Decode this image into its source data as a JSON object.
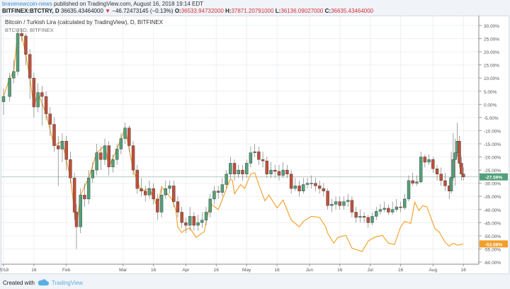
{
  "header": {
    "author": "bravenewcoin-news",
    "published": "published on TradingView.com, August 16, 2018 19:14 EDT",
    "symbol": "BITFINEX:BTCTRY, D",
    "last": "36635.43464000",
    "change": "−46.72473145 (−0.13%)",
    "open_label": "O:",
    "open": "36533.94732000",
    "high_label": "H:",
    "high": "37871.20791000",
    "low_label": "L:",
    "low": "36136.09027000",
    "close_label": "C:",
    "close": "36635.43464000",
    "down_color": "#d0323b"
  },
  "legend": {
    "main": "Bitcoin / Turkish Lira (calculated by TradingView), D, BITFINEX",
    "compare": "BTCUSD, BITFINEX"
  },
  "footer": {
    "created_with": "Created with",
    "brand": "TradingView",
    "icon": "tradingview-cloud-icon"
  },
  "chart_data": {
    "type": "candlestick",
    "year": 2018,
    "ylim": [
      -60,
      30
    ],
    "yticks": [
      "30.00%",
      "25.00%",
      "20.00%",
      "15.00%",
      "10.00%",
      "5.00%",
      "0.00%",
      "-5.00%",
      "-10.00%",
      "-15.00%",
      "-20.00%",
      "-25.00%",
      "-30.00%",
      "-35.00%",
      "-40.00%",
      "-45.00%",
      "-50.00%",
      "-55.00%",
      "-60.00%"
    ],
    "xticks": [
      [
        "01-01",
        "2018"
      ],
      [
        "01-16",
        "16"
      ],
      [
        "02-01",
        "Feb"
      ],
      [
        "03-01",
        "Mar"
      ],
      [
        "03-16",
        "16"
      ],
      [
        "04-01",
        "Apr"
      ],
      [
        "04-16",
        "16"
      ],
      [
        "05-01",
        "May"
      ],
      [
        "05-16",
        "16"
      ],
      [
        "06-01",
        "Jun"
      ],
      [
        "06-16",
        "16"
      ],
      [
        "07-01",
        "Jul"
      ],
      [
        "07-16",
        "16"
      ],
      [
        "08-01",
        "Aug"
      ],
      [
        "08-16",
        "16"
      ]
    ],
    "grid": true,
    "colors": {
      "up": "#53a07a",
      "down": "#c0503a",
      "compare": "#f2a531",
      "last_tag": "#53a07a",
      "compare_tag": "#f2a02a"
    },
    "last_value_label": "-27.59%",
    "last_value": -27.59,
    "compare_last_label": "-53.08%",
    "compare_last": -53.08,
    "series_main": {
      "name": "BTCTRY",
      "ohlc": [
        [
          "01-01",
          1,
          6,
          -4,
          3
        ],
        [
          "01-04",
          3,
          12,
          1,
          10
        ],
        [
          "01-06",
          10,
          17,
          8,
          12.5
        ],
        [
          "01-08",
          12.5,
          29,
          11,
          27
        ],
        [
          "01-10",
          27,
          29,
          24,
          26
        ],
        [
          "01-12",
          26,
          27,
          15,
          19
        ],
        [
          "01-14",
          19,
          21,
          2,
          10
        ],
        [
          "01-16",
          10,
          12,
          -5,
          -1
        ],
        [
          "01-18",
          -1,
          8,
          -3,
          4.5
        ],
        [
          "01-20",
          4.5,
          7,
          -8,
          3
        ],
        [
          "01-22",
          3,
          5,
          -6,
          -3.6
        ],
        [
          "01-24",
          -3.6,
          -1,
          -12,
          -7.6
        ],
        [
          "01-26",
          -7.6,
          -5,
          -18,
          -15.7
        ],
        [
          "01-28",
          -15.7,
          -12,
          -31,
          -17
        ],
        [
          "01-30",
          -17,
          -11,
          -22,
          -14
        ],
        [
          "02-01",
          -14,
          -12,
          -25,
          -21
        ],
        [
          "02-03",
          -21,
          -18,
          -30,
          -28
        ],
        [
          "02-05",
          -28,
          -26,
          -44,
          -41
        ],
        [
          "02-06",
          -41,
          -38,
          -55,
          -46.6
        ],
        [
          "02-08",
          -46.6,
          -32,
          -49,
          -34.5
        ],
        [
          "02-10",
          -34.5,
          -30,
          -39,
          -36
        ],
        [
          "02-12",
          -36,
          -25,
          -38,
          -28
        ],
        [
          "02-14",
          -28,
          -22,
          -30,
          -25
        ],
        [
          "02-16",
          -25,
          -15,
          -27,
          -18.4
        ],
        [
          "02-18",
          -18.4,
          -16,
          -25,
          -21
        ],
        [
          "02-20",
          -21,
          -13,
          -23,
          -15.7
        ],
        [
          "02-22",
          -15.7,
          -14,
          -27,
          -23.8
        ],
        [
          "02-24",
          -23.8,
          -19,
          -26,
          -21
        ],
        [
          "02-26",
          -21,
          -15,
          -23,
          -17
        ],
        [
          "02-28",
          -17,
          -11,
          -19,
          -13
        ],
        [
          "03-02",
          -13,
          -7,
          -15,
          -9
        ],
        [
          "03-04",
          -9,
          -8,
          -18,
          -15.7
        ],
        [
          "03-06",
          -15.7,
          -14,
          -27,
          -25
        ],
        [
          "03-08",
          -25,
          -23,
          -34,
          -32
        ],
        [
          "03-10",
          -32,
          -28,
          -35,
          -33
        ],
        [
          "03-12",
          -33,
          -31,
          -37,
          -34.5
        ],
        [
          "03-14",
          -34.5,
          -29,
          -36,
          -32
        ],
        [
          "03-16",
          -32,
          -30,
          -38,
          -36
        ],
        [
          "03-18",
          -36,
          -34,
          -44,
          -41
        ],
        [
          "03-20",
          -41,
          -32,
          -43,
          -34.5
        ],
        [
          "03-22",
          -34.5,
          -29,
          -36,
          -32
        ],
        [
          "03-24",
          -32,
          -29,
          -34,
          -31
        ],
        [
          "03-26",
          -31,
          -29,
          -39,
          -37
        ],
        [
          "03-28",
          -37,
          -35,
          -43,
          -41
        ],
        [
          "03-30",
          -41,
          -39,
          -47,
          -45
        ],
        [
          "04-01",
          -45,
          -43,
          -49,
          -46
        ],
        [
          "04-03",
          -46,
          -39,
          -48,
          -42.6
        ],
        [
          "04-05",
          -42.6,
          -41,
          -48,
          -46
        ],
        [
          "04-07",
          -46,
          -42,
          -48,
          -45
        ],
        [
          "04-09",
          -45,
          -41,
          -47,
          -44
        ],
        [
          "04-11",
          -44,
          -39,
          -46,
          -41
        ],
        [
          "04-13",
          -41,
          -34,
          -43,
          -36
        ],
        [
          "04-15",
          -36,
          -31,
          -38,
          -33
        ],
        [
          "04-17",
          -33,
          -31,
          -36,
          -33.5
        ],
        [
          "04-19",
          -33.5,
          -28,
          -35,
          -30.5
        ],
        [
          "04-21",
          -30.5,
          -25,
          -32,
          -26.5
        ],
        [
          "04-23",
          -26.5,
          -20,
          -28,
          -22.4
        ],
        [
          "04-25",
          -22.4,
          -21,
          -29,
          -26.5
        ],
        [
          "04-27",
          -26.5,
          -23,
          -28,
          -25
        ],
        [
          "04-29",
          -25,
          -23,
          -29,
          -26.5
        ],
        [
          "05-01",
          -26.5,
          -21,
          -28,
          -22.4
        ],
        [
          "05-03",
          -22.4,
          -16,
          -24,
          -18.4
        ],
        [
          "05-05",
          -18.4,
          -15,
          -20,
          -18
        ],
        [
          "05-07",
          -18,
          -16,
          -23,
          -21
        ],
        [
          "05-09",
          -21,
          -18,
          -24,
          -21.5
        ],
        [
          "05-11",
          -21.5,
          -20,
          -28,
          -26.5
        ],
        [
          "05-13",
          -26.5,
          -22,
          -28,
          -25
        ],
        [
          "05-15",
          -25,
          -23,
          -28,
          -25.5
        ],
        [
          "05-17",
          -25.5,
          -23,
          -29,
          -27
        ],
        [
          "05-19",
          -27,
          -22,
          -28,
          -25
        ],
        [
          "05-21",
          -25,
          -23,
          -28,
          -26.5
        ],
        [
          "05-23",
          -26.5,
          -25,
          -34,
          -32
        ],
        [
          "05-25",
          -32,
          -28,
          -33,
          -31
        ],
        [
          "05-27",
          -31,
          -29,
          -35,
          -33
        ],
        [
          "05-29",
          -33,
          -28,
          -34,
          -30.5
        ],
        [
          "05-31",
          -30.5,
          -28,
          -32,
          -30
        ],
        [
          "06-02",
          -30,
          -27,
          -32,
          -30
        ],
        [
          "06-04",
          -30,
          -28,
          -33,
          -31
        ],
        [
          "06-06",
          -31,
          -29,
          -34,
          -32
        ],
        [
          "06-08",
          -32,
          -30,
          -35,
          -33
        ],
        [
          "06-10",
          -33,
          -32,
          -40,
          -38.5
        ],
        [
          "06-12",
          -38.5,
          -36,
          -41,
          -38
        ],
        [
          "06-14",
          -38,
          -35,
          -40,
          -37
        ],
        [
          "06-16",
          -37,
          -35,
          -40,
          -38.5
        ],
        [
          "06-18",
          -38.5,
          -35,
          -40,
          -37
        ],
        [
          "06-20",
          -37,
          -34,
          -39,
          -36.5
        ],
        [
          "06-22",
          -36.5,
          -35,
          -43,
          -41
        ],
        [
          "06-24",
          -41,
          -39,
          -45,
          -43
        ],
        [
          "06-26",
          -43,
          -40,
          -45,
          -42.6
        ],
        [
          "06-28",
          -42.6,
          -41,
          -45,
          -43
        ],
        [
          "06-30",
          -43,
          -42,
          -47,
          -45
        ],
        [
          "07-02",
          -45,
          -41,
          -46,
          -42.6
        ],
        [
          "07-04",
          -42.6,
          -39,
          -44,
          -40.7
        ],
        [
          "07-06",
          -40.7,
          -38,
          -42,
          -40
        ],
        [
          "07-08",
          -40,
          -37,
          -41,
          -39.5
        ],
        [
          "07-10",
          -39.5,
          -38,
          -42,
          -41
        ],
        [
          "07-12",
          -41,
          -37,
          -42,
          -40
        ],
        [
          "07-14",
          -40,
          -36,
          -41,
          -39
        ],
        [
          "07-16",
          -39,
          -37,
          -41,
          -39.3
        ],
        [
          "07-18",
          -39.3,
          -34,
          -40,
          -36
        ],
        [
          "07-20",
          -36,
          -27,
          -37,
          -29
        ],
        [
          "07-22",
          -29,
          -26,
          -31,
          -30
        ],
        [
          "07-24",
          -30,
          -27,
          -31,
          -29.5
        ],
        [
          "07-26",
          -29.5,
          -18,
          -30,
          -20
        ],
        [
          "07-28",
          -20,
          -19,
          -24,
          -22
        ],
        [
          "07-30",
          -22,
          -19,
          -23,
          -21
        ],
        [
          "08-01",
          -21,
          -20,
          -26,
          -24.5
        ],
        [
          "08-03",
          -24.5,
          -23,
          -29,
          -26.5
        ],
        [
          "08-05",
          -26.5,
          -24,
          -31,
          -29
        ],
        [
          "08-07",
          -29,
          -26,
          -33,
          -31
        ],
        [
          "08-09",
          -31,
          -28,
          -36,
          -33
        ],
        [
          "08-10",
          -33,
          -18,
          -34,
          -27.8
        ],
        [
          "08-11",
          -27.8,
          -11,
          -29,
          -21
        ],
        [
          "08-12",
          -21,
          -13,
          -31,
          -18.4
        ],
        [
          "08-13",
          -18.4,
          -7,
          -20,
          -14
        ],
        [
          "08-14",
          -14,
          -12,
          -24,
          -22.4
        ],
        [
          "08-15",
          -22.4,
          -20,
          -29,
          -26.5
        ],
        [
          "08-16",
          -26.5,
          -24,
          -29,
          -27.59
        ]
      ]
    },
    "series_compare": {
      "name": "BTCUSD",
      "points": [
        [
          "01-01",
          3
        ],
        [
          "01-04",
          10
        ],
        [
          "01-06",
          12.5
        ],
        [
          "01-08",
          27
        ],
        [
          "01-10",
          26
        ],
        [
          "01-12",
          19
        ],
        [
          "01-14",
          10
        ],
        [
          "01-16",
          -1
        ],
        [
          "01-18",
          4.5
        ],
        [
          "01-22",
          -3.6
        ],
        [
          "01-26",
          -15.7
        ],
        [
          "01-30",
          -14
        ],
        [
          "02-03",
          -28
        ],
        [
          "02-06",
          -46.6
        ],
        [
          "02-08",
          -34.5
        ],
        [
          "02-12",
          -28
        ],
        [
          "02-16",
          -18.4
        ],
        [
          "02-20",
          -15.7
        ],
        [
          "02-22",
          -23.8
        ],
        [
          "02-26",
          -17
        ],
        [
          "03-02",
          -9
        ],
        [
          "03-06",
          -25
        ],
        [
          "03-10",
          -33
        ],
        [
          "03-14",
          -32
        ],
        [
          "03-18",
          -39
        ],
        [
          "03-20",
          -31.3
        ],
        [
          "03-25",
          -36
        ],
        [
          "03-27",
          -40
        ],
        [
          "03-28",
          -46.6
        ],
        [
          "03-30",
          -48.8
        ],
        [
          "03-31",
          -48
        ],
        [
          "04-03",
          -47
        ],
        [
          "04-06",
          -50.6
        ],
        [
          "04-10",
          -48.5
        ],
        [
          "04-13",
          -37.7
        ],
        [
          "04-17",
          -40
        ],
        [
          "04-23",
          -28.3
        ],
        [
          "04-24",
          -29
        ],
        [
          "04-25",
          -34
        ],
        [
          "04-28",
          -30.5
        ],
        [
          "04-30",
          -32
        ],
        [
          "05-03",
          -26.5
        ],
        [
          "05-05",
          -26
        ],
        [
          "05-07",
          -30.5
        ],
        [
          "05-10",
          -36.7
        ],
        [
          "05-12",
          -34.5
        ],
        [
          "05-16",
          -39.4
        ],
        [
          "05-19",
          -36.4
        ],
        [
          "05-23",
          -44
        ],
        [
          "05-27",
          -46.6
        ],
        [
          "05-29",
          -44.5
        ],
        [
          "06-02",
          -42.6
        ],
        [
          "06-06",
          -43
        ],
        [
          "06-09",
          -46.6
        ],
        [
          "06-10",
          -49
        ],
        [
          "06-13",
          -52.8
        ],
        [
          "06-15",
          -50.6
        ],
        [
          "06-19",
          -49.8
        ],
        [
          "06-22",
          -54.7
        ],
        [
          "06-27",
          -56
        ],
        [
          "06-30",
          -52
        ],
        [
          "07-03",
          -50.6
        ],
        [
          "07-07",
          -49.8
        ],
        [
          "07-10",
          -52.8
        ],
        [
          "07-13",
          -53.3
        ],
        [
          "07-16",
          -46.6
        ],
        [
          "07-18",
          -44.5
        ],
        [
          "07-21",
          -45.3
        ],
        [
          "07-23",
          -37.2
        ],
        [
          "07-25",
          -40.4
        ],
        [
          "07-27",
          -38.5
        ],
        [
          "07-29",
          -39
        ],
        [
          "08-02",
          -47.4
        ],
        [
          "08-04",
          -48.5
        ],
        [
          "08-07",
          -52.5
        ],
        [
          "08-09",
          -53.9
        ],
        [
          "08-11",
          -52.8
        ],
        [
          "08-13",
          -53.6
        ],
        [
          "08-16",
          -53.08
        ]
      ]
    }
  }
}
